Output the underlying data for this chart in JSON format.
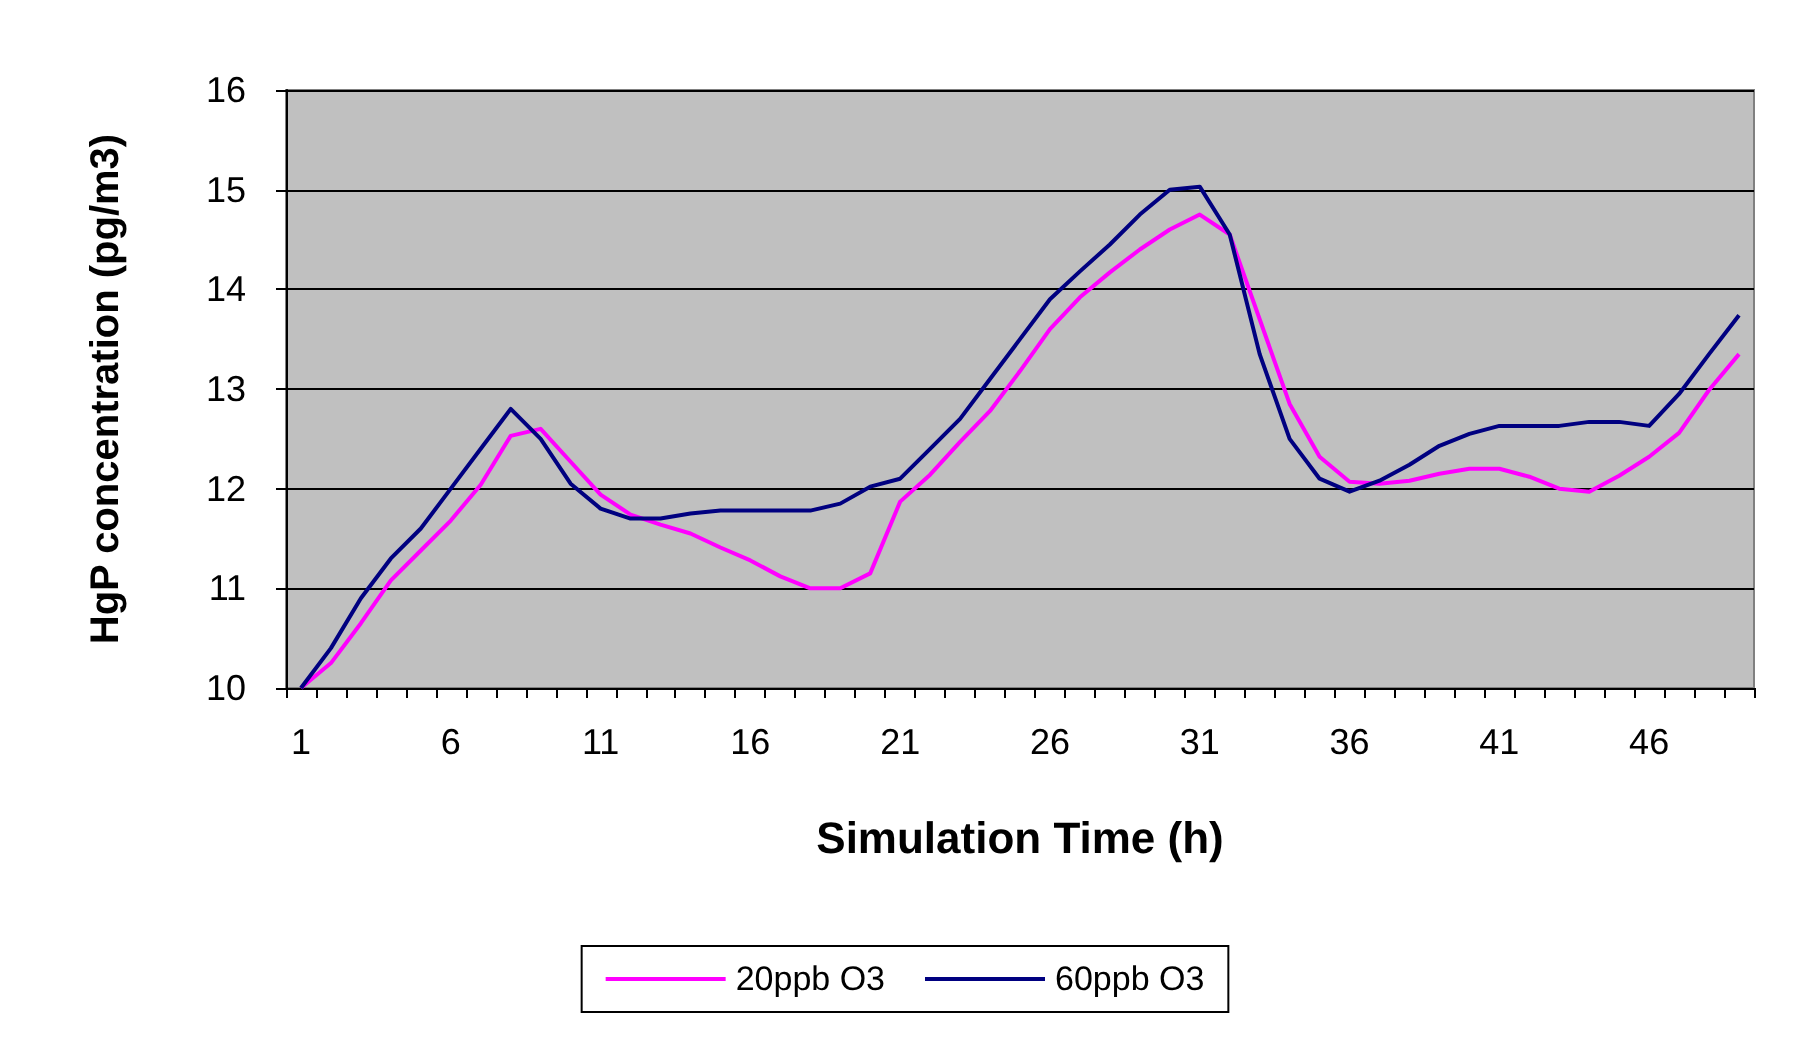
{
  "chart_data": {
    "type": "line",
    "xlabel": "Simulation Time (h)",
    "ylabel": "HgP concentration (pg/m3)",
    "categories": [
      "1",
      null,
      null,
      null,
      null,
      "6",
      null,
      null,
      null,
      null,
      "11",
      null,
      null,
      null,
      null,
      "16",
      null,
      null,
      null,
      null,
      "21",
      null,
      null,
      null,
      null,
      "26",
      null,
      null,
      null,
      null,
      "31",
      null,
      null,
      null,
      null,
      "36",
      null,
      null,
      null,
      null,
      "41",
      null,
      null,
      null,
      null,
      "46",
      null,
      null,
      null
    ],
    "series": [
      {
        "name": "20ppb O3",
        "color": "#ff00ff",
        "values": [
          10.0,
          10.25,
          10.65,
          11.08,
          11.38,
          11.68,
          12.04,
          12.53,
          12.6,
          12.27,
          11.94,
          11.74,
          11.64,
          11.55,
          11.41,
          11.28,
          11.12,
          11.0,
          11.0,
          11.15,
          11.87,
          12.14,
          12.47,
          12.78,
          13.18,
          13.6,
          13.92,
          14.17,
          14.4,
          14.6,
          14.75,
          14.55,
          13.7,
          12.85,
          12.32,
          12.07,
          12.05,
          12.08,
          12.15,
          12.2,
          12.2,
          12.12,
          12.0,
          11.97,
          12.13,
          12.32,
          12.56,
          12.99,
          13.35
        ]
      },
      {
        "name": "60ppb O3",
        "color": "#000080",
        "values": [
          10.0,
          10.4,
          10.9,
          11.3,
          11.6,
          12.0,
          12.4,
          12.8,
          12.5,
          12.05,
          11.8,
          11.7,
          11.7,
          11.75,
          11.78,
          11.78,
          11.78,
          11.78,
          11.85,
          12.02,
          12.1,
          12.4,
          12.7,
          13.1,
          13.5,
          13.9,
          14.18,
          14.45,
          14.75,
          15.0,
          15.03,
          14.55,
          13.35,
          12.5,
          12.1,
          11.97,
          12.08,
          12.24,
          12.43,
          12.55,
          12.63,
          12.63,
          12.63,
          12.67,
          12.67,
          12.63,
          12.95,
          13.35,
          13.74
        ]
      }
    ],
    "ylim": [
      10,
      16
    ],
    "yticks": [
      10,
      11,
      12,
      13,
      14,
      15,
      16
    ],
    "grid": "y",
    "legend": "bottom",
    "marker": "none",
    "line_style": "solid"
  }
}
